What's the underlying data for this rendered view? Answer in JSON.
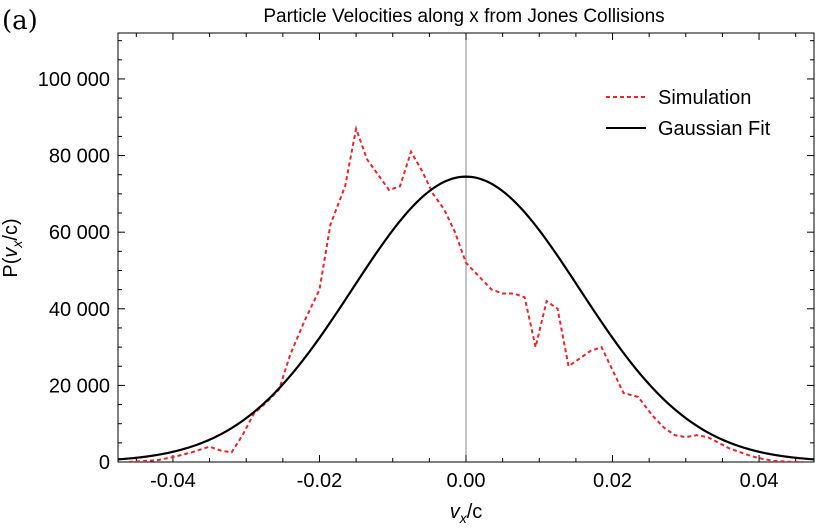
{
  "chart_data": {
    "type": "line",
    "panel_label": "(a)",
    "title": "Particle Velocities along x from Jones Collisions",
    "xlabel": {
      "var": "v",
      "sub": "x",
      "rest": "/c"
    },
    "ylabel": {
      "pre": "P(",
      "var": "v",
      "sub": "x",
      "post": "/c)"
    },
    "xlim": [
      -0.0475,
      0.0475
    ],
    "ylim": [
      0,
      112000
    ],
    "x_ticks": [
      {
        "value": -0.04,
        "label": "-0.04"
      },
      {
        "value": -0.02,
        "label": "-0.02"
      },
      {
        "value": 0.0,
        "label": "0.00"
      },
      {
        "value": 0.02,
        "label": "0.02"
      },
      {
        "value": 0.04,
        "label": "0.04"
      }
    ],
    "y_ticks": [
      {
        "value": 0,
        "label": "0"
      },
      {
        "value": 20000,
        "label": "20 000"
      },
      {
        "value": 40000,
        "label": "40 000"
      },
      {
        "value": 60000,
        "label": "60 000"
      },
      {
        "value": 80000,
        "label": "80 000"
      },
      {
        "value": 100000,
        "label": "100 000"
      }
    ],
    "legend_position": "top-right",
    "series": [
      {
        "name": "Simulation",
        "style": "dashed",
        "color": "#e8262b",
        "x": [
          -0.046,
          -0.042,
          -0.0395,
          -0.0375,
          -0.035,
          -0.0335,
          -0.032,
          -0.0305,
          -0.029,
          -0.027,
          -0.0255,
          -0.024,
          -0.022,
          -0.02,
          -0.0185,
          -0.0165,
          -0.015,
          -0.0135,
          -0.012,
          -0.0105,
          -0.009,
          -0.0075,
          -0.006,
          -0.0045,
          -0.003,
          -0.0015,
          0.0,
          0.002,
          0.0035,
          0.005,
          0.0065,
          0.008,
          0.0095,
          0.011,
          0.0125,
          0.014,
          0.0155,
          0.017,
          0.0185,
          0.02,
          0.0215,
          0.0235,
          0.0255,
          0.027,
          0.0285,
          0.03,
          0.0315,
          0.033,
          0.0345,
          0.036,
          0.0375,
          0.039,
          0.0405,
          0.042,
          0.044,
          0.046
        ],
        "values": [
          0,
          500,
          1500,
          2500,
          4000,
          3000,
          2500,
          7000,
          12500,
          16000,
          19000,
          28000,
          37000,
          45000,
          62000,
          72000,
          87000,
          79000,
          75000,
          71000,
          72000,
          81000,
          76000,
          70000,
          66000,
          60000,
          52000,
          48000,
          45000,
          44000,
          44000,
          43000,
          30000,
          42000,
          40000,
          25000,
          27000,
          29000,
          30000,
          24000,
          18000,
          17000,
          12000,
          9000,
          7000,
          6500,
          7000,
          6500,
          5000,
          3500,
          2500,
          1500,
          800,
          300,
          100,
          0
        ]
      },
      {
        "name": "Gaussian Fit",
        "style": "solid",
        "color": "#000000",
        "model": "gaussian",
        "amplitude": 74500,
        "mean": 0.0,
        "sigma": 0.0155
      }
    ]
  }
}
